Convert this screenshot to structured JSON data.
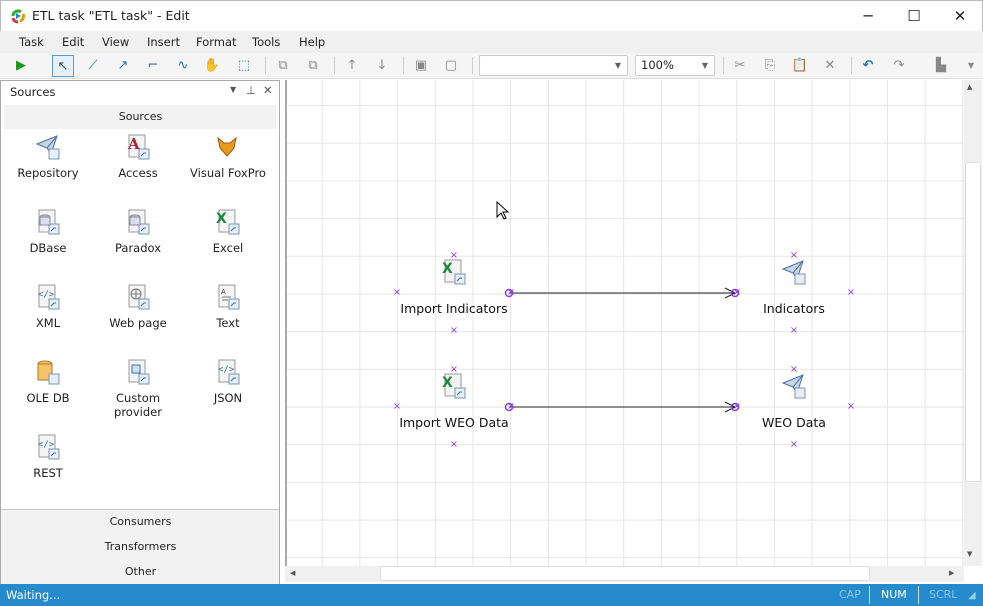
{
  "window": {
    "title": "ETL task \"ETL task\" - Edit",
    "minimize": "─",
    "maximize": "☐",
    "close": "✕"
  },
  "menu": [
    "Task",
    "Edit",
    "View",
    "Insert",
    "Format",
    "Tools",
    "Help"
  ],
  "toolbar": {
    "zoom": "100%",
    "style_combo": "",
    "icons": [
      "run-icon",
      "pointer-icon",
      "line-icon",
      "arrow-line-icon",
      "elbow-line-icon",
      "curve-line-icon",
      "hand-icon",
      "select-area-icon",
      "bring-front-icon",
      "send-back-icon",
      "move-up-icon",
      "move-down-icon",
      "group-icon",
      "ungroup-icon",
      "cut-icon",
      "copy-icon",
      "paste-icon",
      "delete-icon",
      "undo-icon",
      "redo-icon",
      "align-icon"
    ]
  },
  "panel": {
    "title": "Sources",
    "group": "Sources",
    "items": [
      {
        "label": "Repository",
        "icon": "repository-icon"
      },
      {
        "label": "Access",
        "icon": "access-icon"
      },
      {
        "label": "Visual FoxPro",
        "icon": "foxpro-icon"
      },
      {
        "label": "DBase",
        "icon": "dbase-icon"
      },
      {
        "label": "Paradox",
        "icon": "paradox-icon"
      },
      {
        "label": "Excel",
        "icon": "excel-icon"
      },
      {
        "label": "XML",
        "icon": "xml-icon"
      },
      {
        "label": "Web page",
        "icon": "web-icon"
      },
      {
        "label": "Text",
        "icon": "text-icon"
      },
      {
        "label": "OLE DB",
        "icon": "oledb-icon"
      },
      {
        "label": "Custom provider",
        "icon": "custom-provider-icon"
      },
      {
        "label": "JSON",
        "icon": "json-icon"
      },
      {
        "label": "REST",
        "icon": "rest-icon"
      }
    ],
    "other_groups": [
      "Consumers",
      "Transformers",
      "Other"
    ]
  },
  "diagram": {
    "nodes": [
      {
        "label": "Import Indicators",
        "icon": "excel-icon"
      },
      {
        "label": "Indicators",
        "icon": "repository-icon"
      },
      {
        "label": "Import WEO Data",
        "icon": "excel-icon"
      },
      {
        "label": "WEO Data",
        "icon": "repository-icon"
      }
    ],
    "accent": "#8a3cf0"
  },
  "status": {
    "text": "Waiting...",
    "cap": "CAP",
    "num": "NUM",
    "scrl": "SCRL",
    "color": "#268bcc"
  }
}
